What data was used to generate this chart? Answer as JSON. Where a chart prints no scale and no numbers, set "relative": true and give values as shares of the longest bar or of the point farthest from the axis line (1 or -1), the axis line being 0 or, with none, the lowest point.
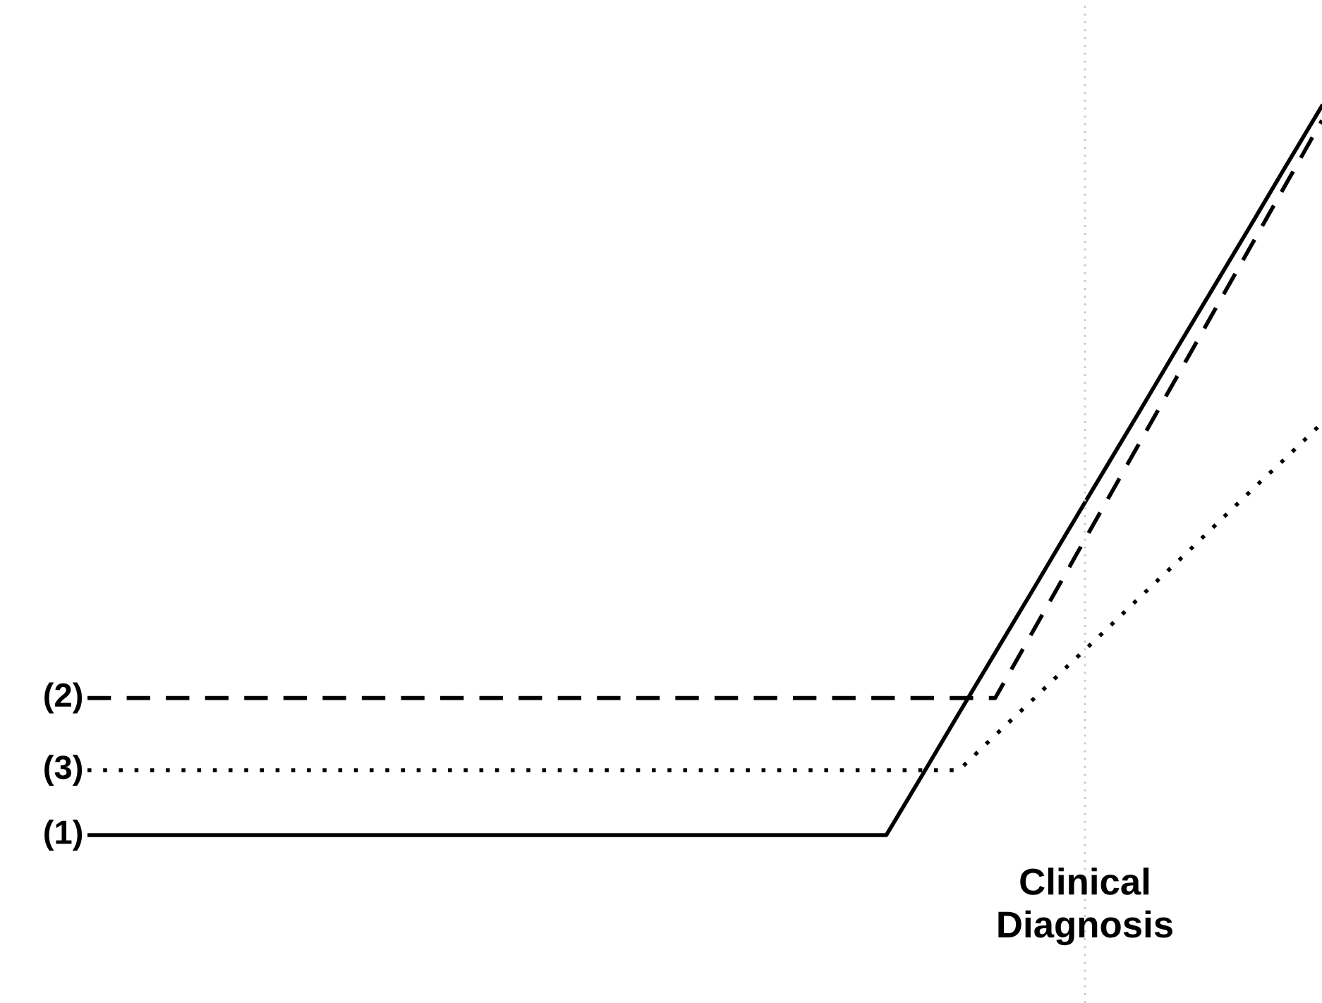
{
  "chart_data": {
    "type": "line",
    "relative": true,
    "legend": false,
    "marker": "none",
    "categories": [
      null,
      null,
      null,
      null,
      null,
      null,
      null,
      null,
      null,
      null,
      null,
      null,
      null,
      null,
      null,
      null,
      null,
      null,
      null,
      null,
      null,
      null,
      null,
      null,
      null,
      null,
      null,
      null,
      null,
      null,
      null,
      null,
      null,
      null,
      null
    ],
    "series": [
      {
        "name": "(1)",
        "color": "#000000",
        "line_style": "solid",
        "values": [
          0,
          0,
          0,
          0,
          0,
          0,
          0,
          0,
          0,
          0,
          0,
          0,
          0,
          0,
          0,
          0,
          0,
          0,
          0,
          0,
          0,
          0,
          0,
          0.083,
          0.167,
          0.25,
          0.333,
          0.417,
          0.5,
          0.583,
          0.667,
          0.75,
          0.833,
          0.917,
          1
        ]
      },
      {
        "name": "(2)",
        "color": "#000000",
        "line_style": "dashed",
        "values": [
          0.188,
          0.188,
          0.188,
          0.188,
          0.188,
          0.188,
          0.188,
          0.188,
          0.188,
          0.188,
          0.188,
          0.188,
          0.188,
          0.188,
          0.188,
          0.188,
          0.188,
          0.188,
          0.188,
          0.188,
          0.188,
          0.188,
          0.188,
          0.188,
          0.188,
          0.188,
          0.276,
          0.364,
          0.452,
          0.54,
          0.628,
          0.716,
          0.804,
          0.892,
          0.98
        ]
      },
      {
        "name": "(3)",
        "color": "#000000",
        "line_style": "dotted",
        "values": [
          0.089,
          0.089,
          0.089,
          0.089,
          0.089,
          0.089,
          0.089,
          0.089,
          0.089,
          0.089,
          0.089,
          0.089,
          0.089,
          0.089,
          0.089,
          0.089,
          0.089,
          0.089,
          0.089,
          0.089,
          0.089,
          0.089,
          0.089,
          0.089,
          0.089,
          0.137,
          0.184,
          0.232,
          0.279,
          0.327,
          0.374,
          0.422,
          0.47,
          0.517,
          0.565
        ]
      }
    ],
    "annotations": [
      "Clinical\nDiagnosis"
    ]
  }
}
